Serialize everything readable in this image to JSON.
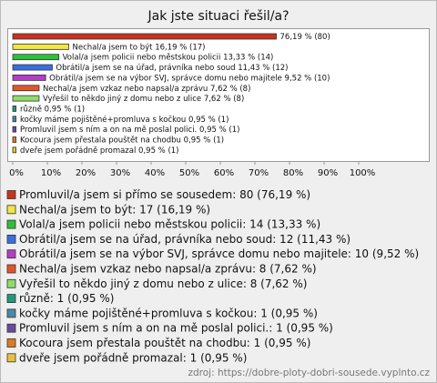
{
  "chart_data": {
    "type": "bar",
    "orientation": "horizontal",
    "title": "Jak jste situaci řešil/a?",
    "categories": [
      null,
      "Nechal/a jsem to být",
      "Volal/a jsem policii nebo městskou policii",
      "Obrátil/a jsem se na úřad, právníka nebo soud",
      "Obrátil/a jsem se na výbor SVJ, správce domu nebo majitele",
      "Nechal/a jsem vzkaz nebo napsal/a zprávu",
      "Vyřešil to někdo jiný z domu nebo z ulice",
      "různě",
      "kočky máme pojištěné+promluva s kočkou",
      "Promluvil jsem s ním a on na mě poslal polici.",
      "Kocoura jsem přestala pouštět na chodbu",
      "dveře jsem pořádně promazal"
    ],
    "values": [
      76.19,
      16.19,
      13.33,
      11.43,
      9.52,
      7.62,
      7.62,
      0.95,
      0.95,
      0.95,
      0.95,
      0.95
    ],
    "value_labels": [
      "76,19 % (80)",
      "16,19 % (17)",
      "13,33 % (14)",
      "11,43 % (12)",
      "9,52 % (10)",
      "7,62 % (8)",
      "7,62 % (8)",
      "0,95 % (1)",
      "0,95 % (1)",
      "0,95 % (1)",
      "0,95 % (1)",
      "0,95 % (1)"
    ],
    "colors": [
      "#c8321e",
      "#f2e641",
      "#2fbf3a",
      "#3a6ee0",
      "#b23fc6",
      "#e2552b",
      "#8edc6a",
      "#1f9a7a",
      "#4a88a8",
      "#6a4aa0",
      "#e07a20",
      "#e8c040"
    ],
    "legend_labels": [
      "Promluvil/a jsem si přímo se sousedem: 80 (76,19 %)",
      "Nechal/a jsem to být: 17 (16,19 %)",
      "Volal/a jsem policii nebo městskou policii: 14 (13,33 %)",
      "Obrátil/a jsem se na úřad, právníka nebo soud: 12 (11,43 %)",
      "Obrátil/a jsem se na výbor SVJ, správce domu nebo majitele: 10 (9,52 %)",
      "Nechal/a jsem vzkaz nebo napsal/a zprávu: 8 (7,62 %)",
      "Vyřešil to někdo jiný z domu nebo z ulice: 8 (7,62 %)",
      "různě: 1 (0,95 %)",
      "kočky máme pojištěné+promluva s kočkou: 1 (0,95 %)",
      "Promluvil jsem s ním a on na mě poslal polici.: 1 (0,95 %)",
      "Kocoura jsem přestala pouštět na chodbu: 1 (0,95 %)",
      "dveře jsem pořádně promazal: 1 (0,95 %)"
    ],
    "xlim": [
      0,
      120
    ],
    "xticks": [
      {
        "value": 0,
        "label": "0%"
      },
      {
        "value": 10,
        "label": "10%"
      },
      {
        "value": 20,
        "label": "20%"
      },
      {
        "value": 30,
        "label": "30%"
      },
      {
        "value": 40,
        "label": "40%"
      },
      {
        "value": 50,
        "label": "50%"
      },
      {
        "value": 60,
        "label": "60%"
      },
      {
        "value": 70,
        "label": "70%"
      },
      {
        "value": 80,
        "label": "80%"
      },
      {
        "value": 90,
        "label": "90%"
      },
      {
        "value": 100,
        "label": "100%"
      }
    ],
    "source": "zdroj: https://dobre-ploty-dobri-sousede.vyplnto.cz"
  }
}
